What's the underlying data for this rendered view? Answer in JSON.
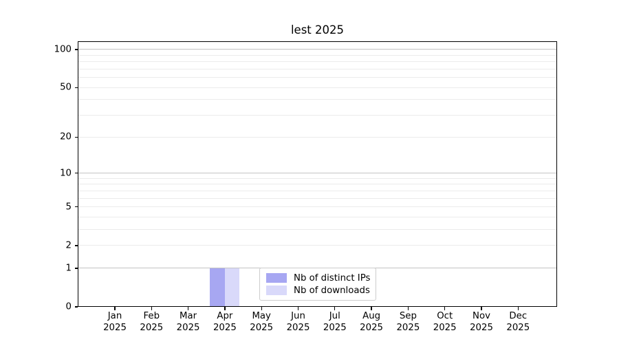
{
  "chart_data": {
    "type": "bar",
    "title": "lest 2025",
    "categories": [
      "Jan 2025",
      "Feb 2025",
      "Mar 2025",
      "Apr 2025",
      "May 2025",
      "Jun 2025",
      "Jul 2025",
      "Aug 2025",
      "Sep 2025",
      "Oct 2025",
      "Nov 2025",
      "Dec 2025"
    ],
    "series": [
      {
        "name": "Nb of distinct IPs",
        "color": "#a7a7f2",
        "values": [
          0,
          0,
          0,
          1,
          0,
          0,
          0,
          0,
          0,
          0,
          0,
          0
        ]
      },
      {
        "name": "Nb of downloads",
        "color": "#d9d9fa",
        "values": [
          0,
          0,
          0,
          1,
          0,
          0,
          0,
          0,
          0,
          0,
          0,
          0
        ]
      }
    ],
    "xlabel": "",
    "ylabel": "",
    "yscale": "log1p",
    "ylim": [
      0,
      116
    ],
    "yticks": [
      0,
      1,
      2,
      5,
      10,
      20,
      50,
      100
    ],
    "major_gridlines": [
      1,
      10,
      100
    ],
    "minor_gridlines": [
      2,
      3,
      4,
      5,
      6,
      7,
      8,
      9,
      20,
      30,
      40,
      50,
      60,
      70,
      80,
      90
    ],
    "grid": true,
    "legend_position": "lower center (inside axes)",
    "colors": {
      "major_grid": "#c3c3c3",
      "minor_grid": "#ebebeb",
      "axis_frame": "#000000",
      "background": "#ffffff"
    }
  }
}
